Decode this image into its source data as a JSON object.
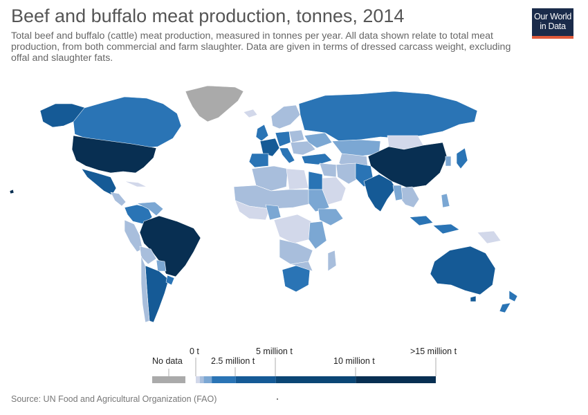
{
  "header": {
    "title": "Beef and buffalo meat production, tonnes, 2014",
    "subtitle": "Total beef and buffalo (cattle) meat production, measured in tonnes per year. All data shown relate to total meat production, from both commercial and farm slaughter. Data are given in terms of dressed carcass weight, excluding offal and slaughter fats."
  },
  "logo": {
    "line1": "Our World",
    "line2": "in Data",
    "bg_color": "#1a2b4a",
    "accent_color": "#e05a3a"
  },
  "legend": {
    "no_data_label": "No data",
    "no_data_color": "#aaaaaa",
    "labels": {
      "zero": "0 t",
      "two_half": "2.5 million t",
      "five": "5 million t",
      "ten": "10 million t",
      "fifteen": ">15 million t"
    },
    "bins": [
      {
        "from": 0,
        "to": 250000,
        "color": "#d2d8ea"
      },
      {
        "from": 250000,
        "to": 500000,
        "color": "#a8bedc"
      },
      {
        "from": 500000,
        "to": 1000000,
        "color": "#7ba7d3"
      },
      {
        "from": 1000000,
        "to": 2500000,
        "color": "#2a74b5"
      },
      {
        "from": 2500000,
        "to": 5000000,
        "color": "#155a96"
      },
      {
        "from": 5000000,
        "to": 10000000,
        "color": "#0b4675"
      },
      {
        "from": 10000000,
        "to": 15000000,
        "color": "#082f52"
      }
    ]
  },
  "colors": {
    "lightest": "#d2d8ea",
    "light": "#a8bedc",
    "mid_light": "#7ba7d3",
    "mid": "#2a74b5",
    "mid_dark": "#155a96",
    "dark": "#0b4675",
    "darkest": "#082f52",
    "no_data": "#aaaaaa"
  },
  "source": "Source: UN Food and Agricultural Organization (FAO)"
}
